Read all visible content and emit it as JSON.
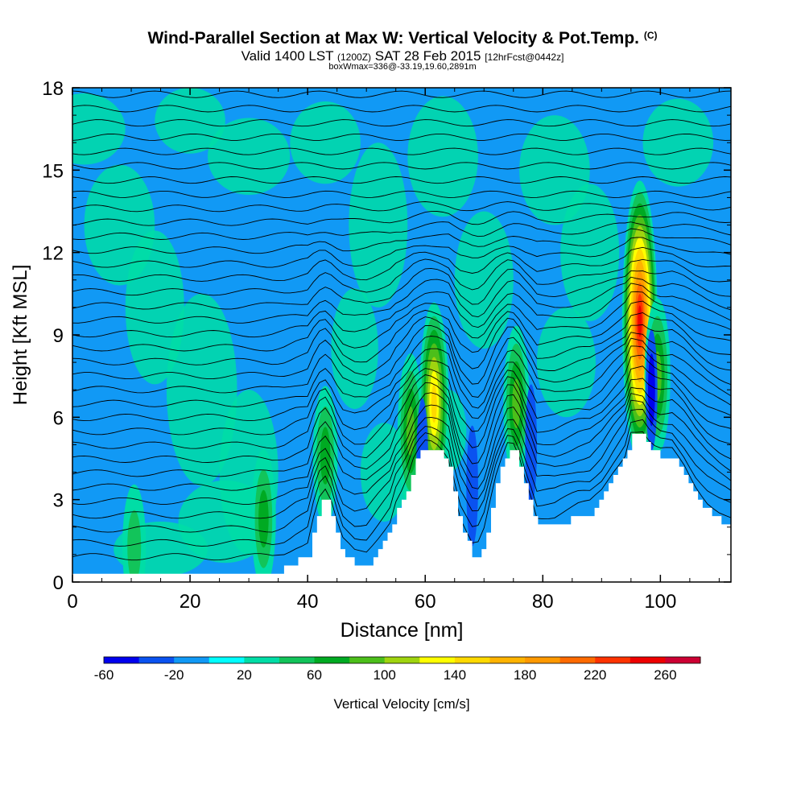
{
  "header": {
    "title": "Wind-Parallel Section at Max W: Vertical Velocity & Pot.Temp.",
    "copyright": "(C)",
    "valid_a": "Valid 1400 LST",
    "valid_b": "(1200Z)",
    "valid_c": "SAT 28 Feb 2015",
    "valid_d": "[12hrFcst@0442z]",
    "boxline": "boxWmax=336@-33.19,19.60,2891m"
  },
  "chart_data": {
    "type": "heatmap",
    "xlabel": "Distance [nm]",
    "ylabel": "Height [Kft MSL]",
    "xlim": [
      0,
      112
    ],
    "ylim": [
      0,
      18
    ],
    "x_ticks": [
      0,
      20,
      40,
      60,
      80,
      100
    ],
    "y_ticks": [
      0,
      3,
      6,
      9,
      12,
      15,
      18
    ],
    "field": "Vertical Velocity",
    "overlay": "Potential temperature contours",
    "terrain_profile_kft": [
      [
        0,
        0.35
      ],
      [
        6,
        0.35
      ],
      [
        12,
        0.35
      ],
      [
        18,
        0.35
      ],
      [
        22,
        0.35
      ],
      [
        26,
        0.35
      ],
      [
        30,
        0.35
      ],
      [
        34,
        0.35
      ],
      [
        36,
        0.5
      ],
      [
        38,
        0.8
      ],
      [
        40,
        1.0
      ],
      [
        41.5,
        2.5
      ],
      [
        42.5,
        3.0
      ],
      [
        43.5,
        3.0
      ],
      [
        44.5,
        2.0
      ],
      [
        46,
        1.0
      ],
      [
        48,
        0.6
      ],
      [
        50,
        0.6
      ],
      [
        52,
        1.2
      ],
      [
        54,
        1.8
      ],
      [
        55,
        2.6
      ],
      [
        56,
        3.0
      ],
      [
        57,
        3.5
      ],
      [
        58,
        4.2
      ],
      [
        59,
        4.6
      ],
      [
        60,
        4.9
      ],
      [
        61,
        4.9
      ],
      [
        62,
        4.8
      ],
      [
        63,
        4.6
      ],
      [
        64,
        4.3
      ],
      [
        65,
        3.0
      ],
      [
        66,
        2.0
      ],
      [
        67,
        1.5
      ],
      [
        68,
        1.0
      ],
      [
        69,
        1.0
      ],
      [
        70,
        1.5
      ],
      [
        71,
        2.5
      ],
      [
        72,
        3.5
      ],
      [
        73,
        4.2
      ],
      [
        74,
        4.8
      ],
      [
        75.5,
        4.8
      ],
      [
        76,
        4.3
      ],
      [
        77,
        3.5
      ],
      [
        78,
        2.8
      ],
      [
        79,
        2.0
      ],
      [
        82,
        2.0
      ],
      [
        84,
        2.2
      ],
      [
        86,
        2.4
      ],
      [
        88,
        2.5
      ],
      [
        90,
        3.0
      ],
      [
        92,
        3.8
      ],
      [
        94,
        4.5
      ],
      [
        95,
        5.4
      ],
      [
        97,
        5.4
      ],
      [
        98.5,
        4.8
      ],
      [
        100,
        4.6
      ],
      [
        102,
        4.6
      ],
      [
        104,
        4.0
      ],
      [
        106,
        3.2
      ],
      [
        108,
        2.6
      ],
      [
        110,
        2.2
      ],
      [
        112,
        1.9
      ]
    ],
    "updrafts": [
      {
        "x": 10.5,
        "z": 1.3,
        "max_cm_s": 60
      },
      {
        "x": 32.5,
        "z": 2.3,
        "max_cm_s": 80
      },
      {
        "x": 43.0,
        "z": 4.6,
        "max_cm_s": 80
      },
      {
        "x": 57.5,
        "z": 5.5,
        "max_cm_s": 100
      },
      {
        "x": 61.5,
        "z": 6.5,
        "max_cm_s": 160
      },
      {
        "x": 75.5,
        "z": 6.5,
        "max_cm_s": 100
      },
      {
        "x": 96.5,
        "z": 9.5,
        "max_cm_s": 260
      },
      {
        "x": 99.5,
        "z": 7.5,
        "max_cm_s": 100
      }
    ],
    "downdrafts": [
      {
        "x": 47.0,
        "z": 3.0,
        "min_cm_s": -20
      },
      {
        "x": 59.5,
        "z": 4.5,
        "min_cm_s": -40
      },
      {
        "x": 68.0,
        "z": 3.5,
        "min_cm_s": -40
      },
      {
        "x": 78.0,
        "z": 5.0,
        "min_cm_s": -40
      },
      {
        "x": 98.5,
        "z": 7.0,
        "min_cm_s": -60
      },
      {
        "x": 104.5,
        "z": 5.0,
        "min_cm_s": -20
      }
    ],
    "colorbar": {
      "label": "Vertical Velocity [cm/s]",
      "min": -60,
      "max": 280,
      "step": 20,
      "tick_labels": [
        "-60",
        "-20",
        "20",
        "60",
        "100",
        "140",
        "180",
        "220",
        "260"
      ],
      "tick_values": [
        -60,
        -20,
        20,
        60,
        100,
        140,
        180,
        220,
        260
      ],
      "colors": [
        "#0000ee",
        "#0a52f0",
        "#1199f5",
        "#00ffff",
        "#00dda6",
        "#12c45a",
        "#00aa22",
        "#4cbf1a",
        "#9fd40f",
        "#ffff00",
        "#ffd900",
        "#ffb300",
        "#ff9900",
        "#ff6a00",
        "#ff3300",
        "#ee0000",
        "#cc0033"
      ]
    }
  }
}
